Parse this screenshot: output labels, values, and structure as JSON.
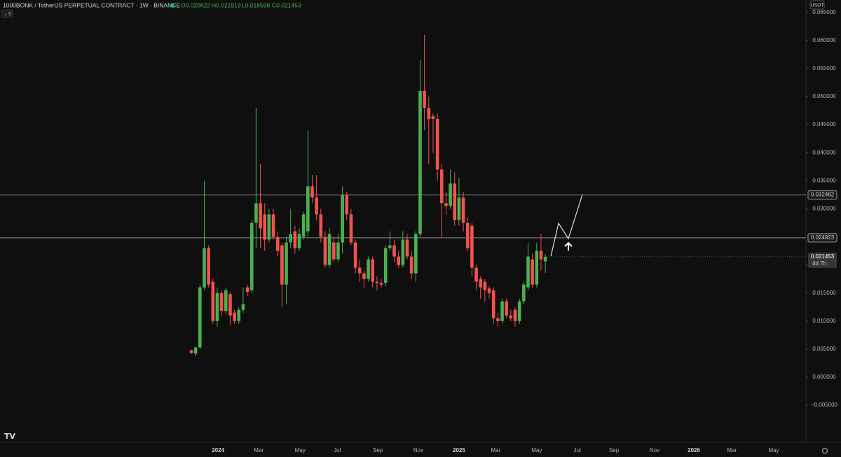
{
  "chart_data": {
    "type": "candlestick",
    "title": "1000BONK / TetherUS PERPETUAL CONTRACT · 1W · BINANCE",
    "ohlc_legend": [
      "O0.020622",
      "H0.021919",
      "L0.018598",
      "C0.021453"
    ],
    "collapse_label": "5",
    "currency": "USDT",
    "countdown": "4d 7h",
    "up_color": "#4caf50",
    "down_color": "#ef5350",
    "categories": [
      null,
      null,
      null,
      null,
      null,
      null,
      null,
      null,
      null,
      null,
      null,
      null,
      null,
      null,
      null,
      null,
      null,
      null,
      null,
      null,
      null,
      null,
      null,
      null,
      null,
      null,
      null,
      null,
      null,
      null,
      null,
      null,
      null,
      null,
      null,
      null,
      null,
      null,
      null,
      null,
      null,
      null,
      null,
      null,
      null,
      null,
      null,
      null,
      null,
      null,
      null,
      null,
      null,
      null,
      null,
      null,
      null,
      null,
      null,
      null,
      null,
      null,
      null,
      null,
      null,
      null,
      null,
      null,
      null,
      null,
      null,
      null,
      null,
      null,
      null,
      null,
      null,
      null,
      null,
      null,
      null,
      null,
      null
    ],
    "open": [
      0.0048,
      0.0042,
      0.0053,
      0.016,
      0.023,
      0.017,
      0.01,
      0.015,
      0.0118,
      0.0148,
      0.0115,
      0.01,
      0.012,
      0.016,
      0.0155,
      0.0275,
      0.031,
      0.029,
      0.0245,
      0.029,
      0.025,
      0.0235,
      0.0165,
      0.024,
      0.026,
      0.023,
      0.025,
      0.026,
      0.034,
      0.032,
      0.029,
      0.025,
      0.02,
      0.024,
      0.021,
      0.024,
      0.0325,
      0.029,
      0.024,
      0.0195,
      0.0185,
      0.0175,
      0.021,
      0.017,
      0.0168,
      0.0168,
      0.023,
      0.0235,
      0.0215,
      0.02,
      0.0245,
      0.0215,
      0.0185,
      0.0255,
      0.051,
      0.048,
      0.0465,
      0.046,
      0.037,
      0.031,
      0.0305,
      0.0345,
      0.028,
      0.032,
      0.0275,
      0.027,
      0.0195,
      0.0175,
      0.017,
      0.0158,
      0.0155,
      0.0105,
      0.01,
      0.0135,
      0.011,
      0.012,
      0.01,
      0.0135,
      0.016,
      0.021,
      0.0165,
      0.0225,
      0.020622
    ],
    "high": [
      0.0049,
      0.0054,
      0.0165,
      0.035,
      0.0235,
      0.0175,
      0.016,
      0.0155,
      0.016,
      0.0152,
      0.012,
      0.0125,
      0.016,
      0.0165,
      0.028,
      0.048,
      0.038,
      0.031,
      0.03,
      0.03,
      0.026,
      0.024,
      0.025,
      0.03,
      0.027,
      0.0265,
      0.0295,
      0.044,
      0.036,
      0.036,
      0.03,
      0.026,
      0.0265,
      0.025,
      0.0255,
      0.034,
      0.033,
      0.03,
      0.0245,
      0.021,
      0.019,
      0.0215,
      0.0215,
      0.018,
      0.0175,
      0.0235,
      0.026,
      0.0245,
      0.0225,
      0.026,
      0.0255,
      0.0225,
      0.026,
      0.0565,
      0.061,
      0.05,
      0.047,
      0.047,
      0.038,
      0.033,
      0.037,
      0.0365,
      0.0355,
      0.033,
      0.0285,
      0.0275,
      0.02,
      0.018,
      0.0175,
      0.0162,
      0.016,
      0.0115,
      0.014,
      0.014,
      0.012,
      0.0125,
      0.014,
      0.017,
      0.024,
      0.022,
      0.024,
      0.0255,
      0.021919
    ],
    "low": [
      0.0042,
      0.0038,
      0.005,
      0.0155,
      0.016,
      0.0095,
      0.009,
      0.011,
      0.0112,
      0.0093,
      0.0095,
      0.0095,
      0.0115,
      0.0145,
      0.015,
      0.023,
      0.023,
      0.0225,
      0.024,
      0.0245,
      0.0215,
      0.0125,
      0.013,
      0.023,
      0.022,
      0.0225,
      0.0245,
      0.025,
      0.031,
      0.028,
      0.024,
      0.0195,
      0.0195,
      0.0205,
      0.0205,
      0.022,
      0.028,
      0.0235,
      0.0185,
      0.017,
      0.016,
      0.017,
      0.016,
      0.0155,
      0.016,
      0.0162,
      0.0225,
      0.0205,
      0.0195,
      0.0195,
      0.021,
      0.0175,
      0.017,
      0.025,
      0.044,
      0.038,
      0.04,
      0.035,
      0.025,
      0.029,
      0.03,
      0.027,
      0.027,
      0.026,
      0.0225,
      0.018,
      0.0155,
      0.014,
      0.0135,
      0.014,
      0.0095,
      0.009,
      0.0095,
      0.0105,
      0.01,
      0.009,
      0.0095,
      0.013,
      0.0155,
      0.016,
      0.016,
      0.019,
      0.018598
    ],
    "close": [
      0.0043,
      0.0053,
      0.016,
      0.023,
      0.0165,
      0.01,
      0.015,
      0.0118,
      0.0155,
      0.011,
      0.01,
      0.012,
      0.013,
      0.0152,
      0.0275,
      0.031,
      0.0265,
      0.0245,
      0.029,
      0.025,
      0.0225,
      0.0165,
      0.024,
      0.0255,
      0.023,
      0.0255,
      0.029,
      0.034,
      0.032,
      0.029,
      0.025,
      0.02,
      0.0255,
      0.021,
      0.024,
      0.0325,
      0.029,
      0.024,
      0.0195,
      0.0185,
      0.0175,
      0.021,
      0.017,
      0.0168,
      0.0165,
      0.023,
      0.0235,
      0.0215,
      0.02,
      0.0245,
      0.0215,
      0.0185,
      0.0255,
      0.051,
      0.048,
      0.046,
      0.046,
      0.037,
      0.031,
      0.0305,
      0.0345,
      0.028,
      0.032,
      0.0275,
      0.023,
      0.0195,
      0.017,
      0.016,
      0.0155,
      0.015,
      0.0105,
      0.01,
      0.0135,
      0.011,
      0.0105,
      0.01,
      0.0135,
      0.0165,
      0.0215,
      0.0165,
      0.0225,
      0.021,
      0.021453
    ],
    "hlines": [
      0.032462,
      0.024823
    ],
    "ylim": [
      -0.0116,
      0.0672
    ],
    "yticks": [
      {
        "value": -0.005,
        "label": "−0.005000"
      },
      {
        "value": 0,
        "label": "0.000000"
      },
      {
        "value": 0.005,
        "label": "0.005000"
      },
      {
        "value": 0.01,
        "label": "0.010000"
      },
      {
        "value": 0.015,
        "label": "0.015000"
      },
      {
        "value": 0.02,
        "label": "0.020000"
      },
      {
        "value": 0.025,
        "label": "0.025000"
      },
      {
        "value": 0.03,
        "label": "0.030000"
      },
      {
        "value": 0.035,
        "label": "0.035000"
      },
      {
        "value": 0.04,
        "label": "0.040000"
      },
      {
        "value": 0.045,
        "label": "0.045000"
      },
      {
        "value": 0.05,
        "label": "0.050000"
      },
      {
        "value": 0.055,
        "label": "0.055000"
      },
      {
        "value": 0.06,
        "label": "0.060000"
      },
      {
        "value": 0.065,
        "label": "0.065000"
      }
    ],
    "xticks": [
      {
        "value": 6.2,
        "label": "2024"
      },
      {
        "value": 15.6,
        "label": "Mar"
      },
      {
        "value": 25.2,
        "label": "May"
      },
      {
        "value": 33.8,
        "label": "Jul"
      },
      {
        "value": 43.2,
        "label": "Sep"
      },
      {
        "value": 52.6,
        "label": "Nov"
      },
      {
        "value": 62.0,
        "label": "2025"
      },
      {
        "value": 70.5,
        "label": "Mar"
      },
      {
        "value": 80.0,
        "label": "May"
      },
      {
        "value": 89.4,
        "label": "Jul"
      },
      {
        "value": 97.9,
        "label": "Sep"
      },
      {
        "value": 107.3,
        "label": "Nov"
      },
      {
        "value": 116.4,
        "label": "2026"
      },
      {
        "value": 125.2,
        "label": "Mar"
      },
      {
        "value": 134.9,
        "label": "May"
      }
    ]
  }
}
